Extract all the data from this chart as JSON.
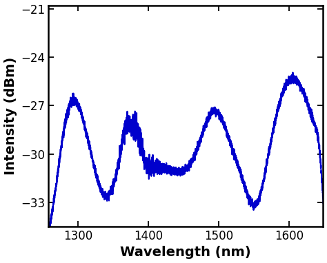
{
  "title": "",
  "xlabel": "Wavelength (nm)",
  "ylabel": "Intensity (dBm)",
  "line_color": "#0000cc",
  "line_width": 1.5,
  "xlim": [
    1258,
    1648
  ],
  "ylim": [
    -34.5,
    -20.8
  ],
  "xticks": [
    1300,
    1400,
    1500,
    1600
  ],
  "yticks": [
    -33,
    -30,
    -27,
    -24,
    -21
  ],
  "xlabel_fontsize": 14,
  "ylabel_fontsize": 14,
  "tick_fontsize": 12,
  "background_color": "#ffffff",
  "noise_amplitude": 0.12,
  "noise_seed": 7
}
